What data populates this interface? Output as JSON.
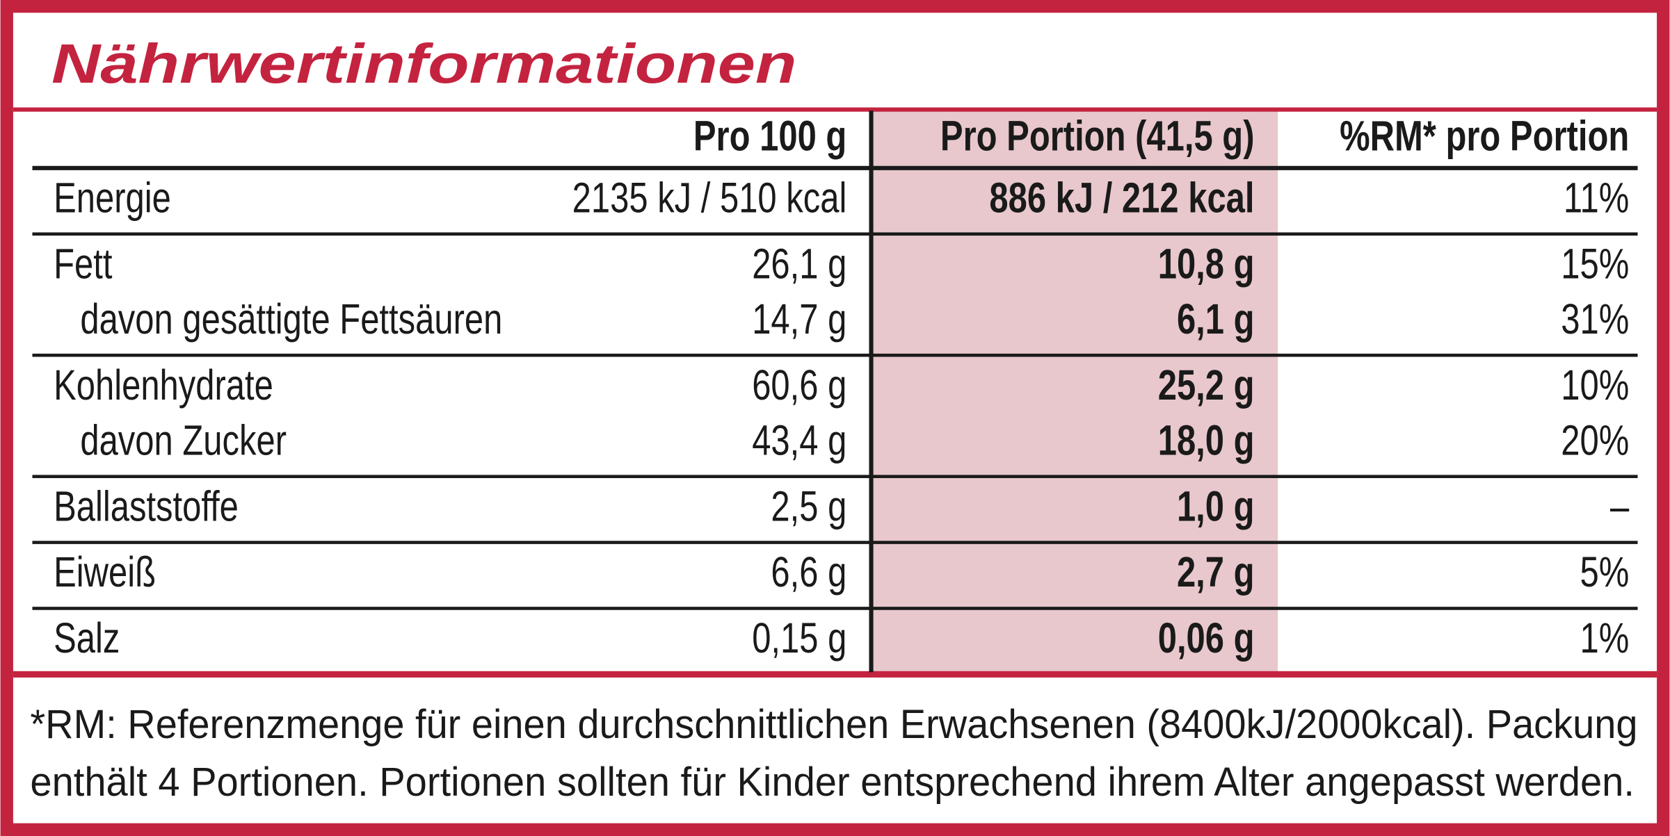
{
  "title": "Nährwertinformationen",
  "header": [
    "Pro 100 g",
    "Pro Portion (41,5 g)",
    "%RM* pro Portion"
  ],
  "groups": [
    [
      [
        "Energie",
        "2135 kJ / 510 kcal",
        "886 kJ / 212 kcal",
        "11%"
      ]
    ],
    [
      [
        "Fett",
        "26,1 g",
        "10,8 g",
        "15%"
      ],
      [
        "davon gesättigte Fettsäuren",
        "14,7 g",
        "6,1 g",
        "31%"
      ]
    ],
    [
      [
        "Kohlenhydrate",
        "60,6 g",
        "25,2 g",
        "10%"
      ],
      [
        "davon Zucker",
        "43,4 g",
        "18,0 g",
        "20%"
      ]
    ],
    [
      [
        "Ballaststoffe",
        "2,5 g",
        "1,0 g",
        "–"
      ]
    ],
    [
      [
        "Eiweiß",
        "6,6 g",
        "2,7 g",
        "5%"
      ]
    ],
    [
      [
        "Salz",
        "0,15 g",
        "0,06 g",
        "1%"
      ]
    ]
  ],
  "footnote": [
    "*RM: Referenzmenge für einen durchschnittlichen Erwachsenen (8400kJ/2000kcal). Packung",
    "enthält 4 Portionen. Portionen sollten für Kinder entsprechend ihrem Alter angepasst werden."
  ]
}
